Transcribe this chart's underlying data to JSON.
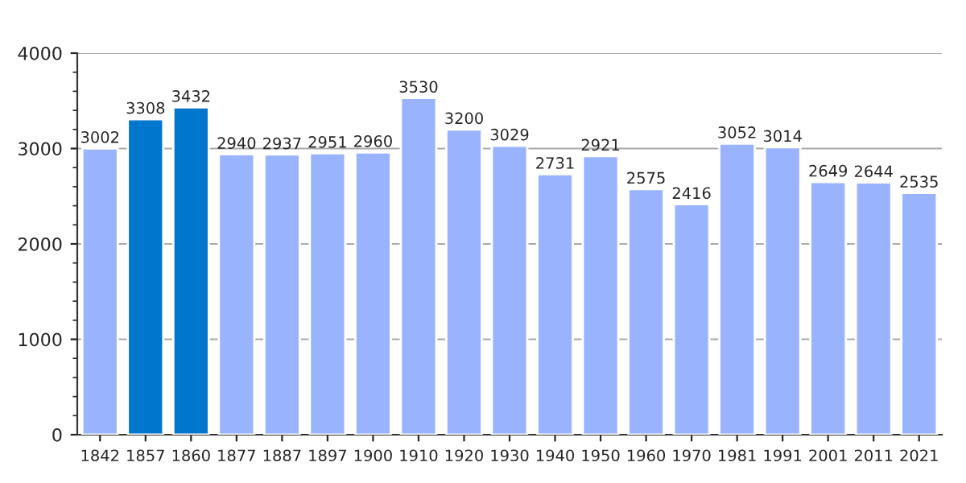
{
  "chart_data": {
    "type": "bar",
    "categories": [
      "1842",
      "1857",
      "1860",
      "1877",
      "1887",
      "1897",
      "1900",
      "1910",
      "1920",
      "1930",
      "1940",
      "1950",
      "1960",
      "1970",
      "1981",
      "1991",
      "2001",
      "2011",
      "2021"
    ],
    "values": [
      3002,
      3308,
      3432,
      2940,
      2937,
      2951,
      2960,
      3530,
      3200,
      3029,
      2731,
      2921,
      2575,
      2416,
      3052,
      3014,
      2649,
      2644,
      2535
    ],
    "colors": [
      "#99b3ff",
      "#0077cc",
      "#0077cc",
      "#99b3ff",
      "#99b3ff",
      "#99b3ff",
      "#99b3ff",
      "#99b3ff",
      "#99b3ff",
      "#99b3ff",
      "#99b3ff",
      "#99b3ff",
      "#99b3ff",
      "#99b3ff",
      "#99b3ff",
      "#99b3ff",
      "#99b3ff",
      "#99b3ff",
      "#99b3ff"
    ],
    "ylim": [
      0,
      4000
    ],
    "yticks": [
      0,
      1000,
      2000,
      3000,
      4000
    ],
    "grid": "y",
    "data_labels": true
  }
}
